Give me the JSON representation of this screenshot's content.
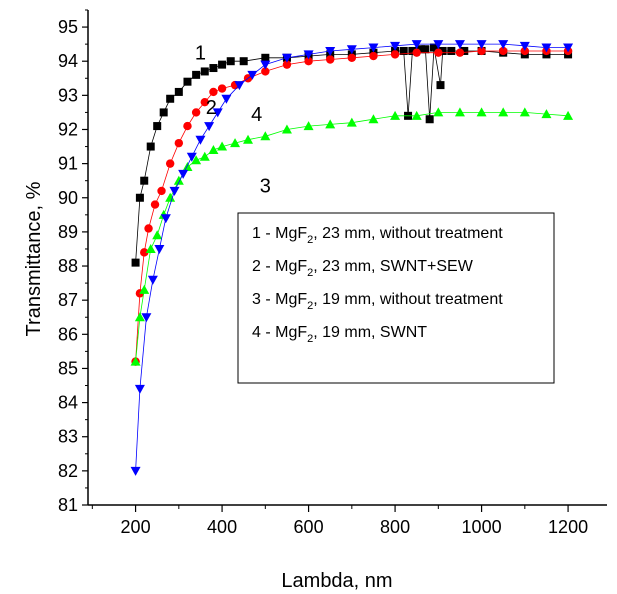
{
  "chart_data": {
    "type": "scatter",
    "title": "",
    "xlabel": "Lambda, nm",
    "ylabel": "Transmittance, %",
    "xlim": [
      90,
      1290
    ],
    "ylim": [
      81,
      95.5
    ],
    "xticks": [
      200,
      400,
      600,
      800,
      1000,
      1200
    ],
    "yticks": [
      81,
      82,
      83,
      84,
      85,
      86,
      87,
      88,
      89,
      90,
      91,
      92,
      93,
      94,
      95
    ],
    "grid": false,
    "legend_position": "center-right",
    "series": [
      {
        "name": "1 - MgF2, 23 mm, without treatment",
        "number": "1",
        "legend_main": "1 - MgF",
        "legend_sub": "2",
        "legend_rest": ", 23 mm, without treatment",
        "color": "#000000",
        "marker": "square",
        "x": [
          200,
          210,
          220,
          235,
          250,
          265,
          280,
          300,
          320,
          340,
          360,
          380,
          400,
          420,
          450,
          500,
          550,
          600,
          650,
          700,
          750,
          800,
          820,
          830,
          840,
          860,
          870,
          880,
          890,
          905,
          910,
          930,
          960,
          1000,
          1050,
          1100,
          1150,
          1200
        ],
        "y": [
          88.1,
          90.0,
          90.5,
          91.5,
          92.1,
          92.5,
          92.9,
          93.1,
          93.4,
          93.6,
          93.7,
          93.8,
          93.9,
          94.0,
          94.0,
          94.1,
          94.1,
          94.15,
          94.2,
          94.2,
          94.25,
          94.3,
          94.3,
          92.4,
          94.3,
          94.35,
          94.35,
          92.3,
          94.4,
          93.3,
          94.3,
          94.3,
          94.3,
          94.3,
          94.25,
          94.2,
          94.2,
          94.2
        ]
      },
      {
        "name": "2 - MgF2, 23 mm, SWNT+SEW",
        "number": "2",
        "legend_main": "2 - MgF",
        "legend_sub": "2",
        "legend_rest": ", 23 mm, SWNT+SEW",
        "color": "#ff0000",
        "marker": "circle",
        "x": [
          200,
          210,
          220,
          230,
          245,
          260,
          280,
          300,
          320,
          340,
          360,
          380,
          400,
          430,
          460,
          500,
          550,
          600,
          650,
          700,
          750,
          800,
          850,
          900,
          950,
          1000,
          1050,
          1100,
          1150,
          1200
        ],
        "y": [
          85.2,
          87.2,
          88.4,
          89.1,
          89.8,
          90.2,
          91.0,
          91.6,
          92.1,
          92.5,
          92.8,
          93.1,
          93.2,
          93.3,
          93.5,
          93.7,
          93.9,
          94.0,
          94.05,
          94.1,
          94.15,
          94.2,
          94.25,
          94.25,
          94.25,
          94.3,
          94.3,
          94.3,
          94.3,
          94.3
        ]
      },
      {
        "name": "3 - MgF2, 19 mm, without treatment",
        "number": "3",
        "legend_main": "3 - MgF",
        "legend_sub": "2",
        "legend_rest": ", 19 mm, without treatment",
        "color": "#00ff00",
        "marker": "triangle-up",
        "x": [
          200,
          210,
          220,
          235,
          250,
          265,
          280,
          300,
          320,
          340,
          360,
          380,
          400,
          430,
          460,
          500,
          550,
          600,
          650,
          700,
          750,
          800,
          850,
          900,
          950,
          1000,
          1050,
          1100,
          1150,
          1200
        ],
        "y": [
          85.2,
          86.5,
          87.3,
          88.5,
          88.9,
          89.5,
          90.0,
          90.5,
          90.9,
          91.1,
          91.2,
          91.4,
          91.5,
          91.6,
          91.7,
          91.8,
          92.0,
          92.1,
          92.15,
          92.2,
          92.3,
          92.4,
          92.4,
          92.5,
          92.5,
          92.5,
          92.5,
          92.5,
          92.45,
          92.4
        ]
      },
      {
        "name": "4 - MgF2, 19 mm, SWNT",
        "number": "4",
        "legend_main": "4 - MgF",
        "legend_sub": "2",
        "legend_rest": ", 19 mm, SWNT",
        "color": "#0000ff",
        "marker": "triangle-down",
        "x": [
          200,
          210,
          225,
          240,
          255,
          270,
          290,
          310,
          330,
          350,
          370,
          390,
          410,
          440,
          470,
          500,
          550,
          600,
          650,
          700,
          750,
          800,
          850,
          900,
          950,
          1000,
          1050,
          1100,
          1150,
          1200
        ],
        "y": [
          82.0,
          84.4,
          86.5,
          87.6,
          88.5,
          89.4,
          90.2,
          90.7,
          91.2,
          91.7,
          92.1,
          92.5,
          92.9,
          93.3,
          93.6,
          93.9,
          94.1,
          94.2,
          94.3,
          94.35,
          94.4,
          94.45,
          94.5,
          94.5,
          94.5,
          94.5,
          94.5,
          94.45,
          94.4,
          94.4
        ]
      }
    ],
    "curve_labels": [
      {
        "text": "1",
        "x": 350,
        "y": 94.05
      },
      {
        "text": "2",
        "x": 375,
        "y": 92.45
      },
      {
        "text": "4",
        "x": 480,
        "y": 92.25
      },
      {
        "text": "3",
        "x": 500,
        "y": 90.15
      }
    ]
  }
}
